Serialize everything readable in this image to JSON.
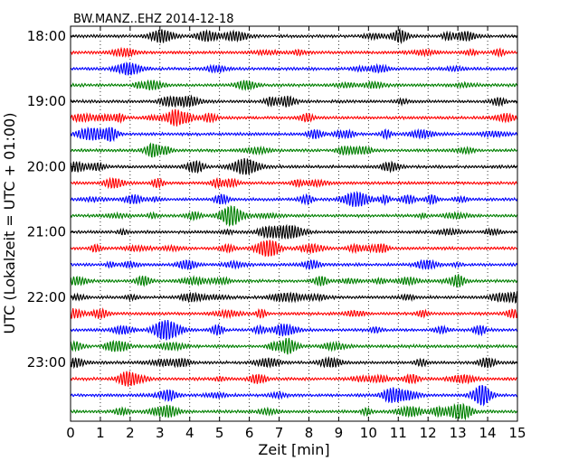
{
  "chart_data": {
    "type": "line",
    "title": "BW.MANZ..EHZ 2014-12-18",
    "xlabel": "Zeit  [min]",
    "ylabel": "UTC (Lokalzeit = UTC + 01:00)",
    "xlim": [
      0,
      15
    ],
    "x_ticks": [
      0,
      1,
      2,
      3,
      4,
      5,
      6,
      7,
      8,
      9,
      10,
      11,
      12,
      13,
      14,
      15
    ],
    "y_tick_labels": [
      "18:00",
      "19:00",
      "20:00",
      "21:00",
      "22:00",
      "23:00"
    ],
    "trace_start_times": [
      "18:00",
      "18:15",
      "18:30",
      "18:45",
      "19:00",
      "19:15",
      "19:30",
      "19:45",
      "20:00",
      "20:15",
      "20:30",
      "20:45",
      "21:00",
      "21:15",
      "21:30",
      "21:45",
      "22:00",
      "22:15",
      "22:30",
      "22:45",
      "23:00",
      "23:15",
      "23:30",
      "23:45"
    ],
    "trace_colors": [
      "#000000",
      "#ff0000",
      "#0000ff",
      "#008000"
    ],
    "grid": "vertical-dotted",
    "legend": "none"
  }
}
